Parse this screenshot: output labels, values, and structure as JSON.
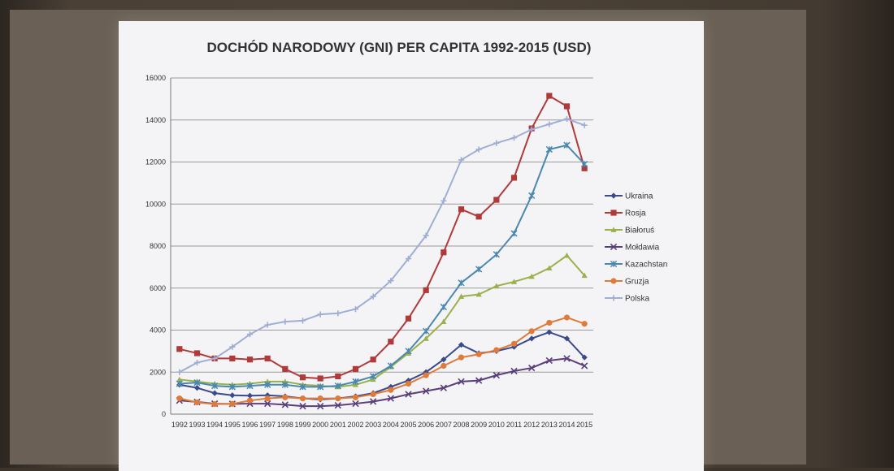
{
  "chart_data": {
    "type": "line",
    "title": "DOCHÓD NARODOWY (GNI) PER CAPITA 1992-2015 (USD)",
    "xlabel": "",
    "ylabel": "",
    "ylim": [
      0,
      16000
    ],
    "yticks": [
      "0",
      "2000",
      "4000",
      "6000",
      "8000",
      "10000",
      "12000",
      "14000",
      "16000"
    ],
    "grid": true,
    "legend_position": "right",
    "categories": [
      "1992",
      "1993",
      "1994",
      "1995",
      "1996",
      "1997",
      "1998",
      "1999",
      "2000",
      "2001",
      "2002",
      "2003",
      "2004",
      "2005",
      "2006",
      "2007",
      "2008",
      "2009",
      "2010",
      "2011",
      "2012",
      "2013",
      "2014",
      "2015"
    ],
    "series": [
      {
        "name": "Ukraina",
        "color": "#3b4a8a",
        "marker": "diamond",
        "values": [
          1400,
          1250,
          1000,
          900,
          880,
          900,
          850,
          750,
          700,
          750,
          850,
          1000,
          1300,
          1600,
          2000,
          2600,
          3300,
          2900,
          3000,
          3200,
          3600,
          3900,
          3600,
          2700
        ]
      },
      {
        "name": "Rosja",
        "color": "#b03a3a",
        "marker": "square",
        "values": [
          3100,
          2900,
          2650,
          2650,
          2600,
          2650,
          2150,
          1750,
          1700,
          1800,
          2150,
          2600,
          3450,
          4550,
          5900,
          7700,
          9750,
          9400,
          10200,
          11250,
          13600,
          15150,
          14650,
          11700
        ]
      },
      {
        "name": "Białoruś",
        "color": "#9ab04a",
        "marker": "triangle",
        "values": [
          1650,
          1550,
          1450,
          1400,
          1450,
          1550,
          1550,
          1400,
          1350,
          1300,
          1400,
          1650,
          2250,
          2900,
          3600,
          4400,
          5600,
          5700,
          6100,
          6300,
          6550,
          6950,
          7550,
          6600
        ]
      },
      {
        "name": "Mołdawia",
        "color": "#5a3e7a",
        "marker": "x",
        "values": [
          650,
          580,
          500,
          490,
          500,
          500,
          450,
          380,
          380,
          420,
          500,
          600,
          750,
          950,
          1100,
          1250,
          1550,
          1600,
          1850,
          2050,
          2200,
          2550,
          2650,
          2300
        ]
      },
      {
        "name": "Kazachstan",
        "color": "#4a88b0",
        "marker": "star",
        "values": [
          1450,
          1500,
          1350,
          1300,
          1350,
          1400,
          1400,
          1300,
          1300,
          1350,
          1550,
          1800,
          2300,
          3000,
          3950,
          5100,
          6250,
          6900,
          7600,
          8600,
          10400,
          12600,
          12800,
          11900
        ]
      },
      {
        "name": "Gruzja",
        "color": "#e07a3a",
        "marker": "circle",
        "values": [
          750,
          560,
          480,
          490,
          650,
          750,
          800,
          750,
          750,
          750,
          800,
          950,
          1150,
          1450,
          1850,
          2300,
          2700,
          2850,
          3050,
          3350,
          3950,
          4350,
          4600,
          4300
        ]
      },
      {
        "name": "Polska",
        "color": "#a0aed4",
        "marker": "plus",
        "values": [
          2000,
          2450,
          2650,
          3200,
          3800,
          4250,
          4400,
          4450,
          4750,
          4800,
          5000,
          5600,
          6350,
          7400,
          8500,
          10150,
          12100,
          12600,
          12900,
          13150,
          13550,
          13800,
          14050,
          13750
        ]
      }
    ]
  }
}
